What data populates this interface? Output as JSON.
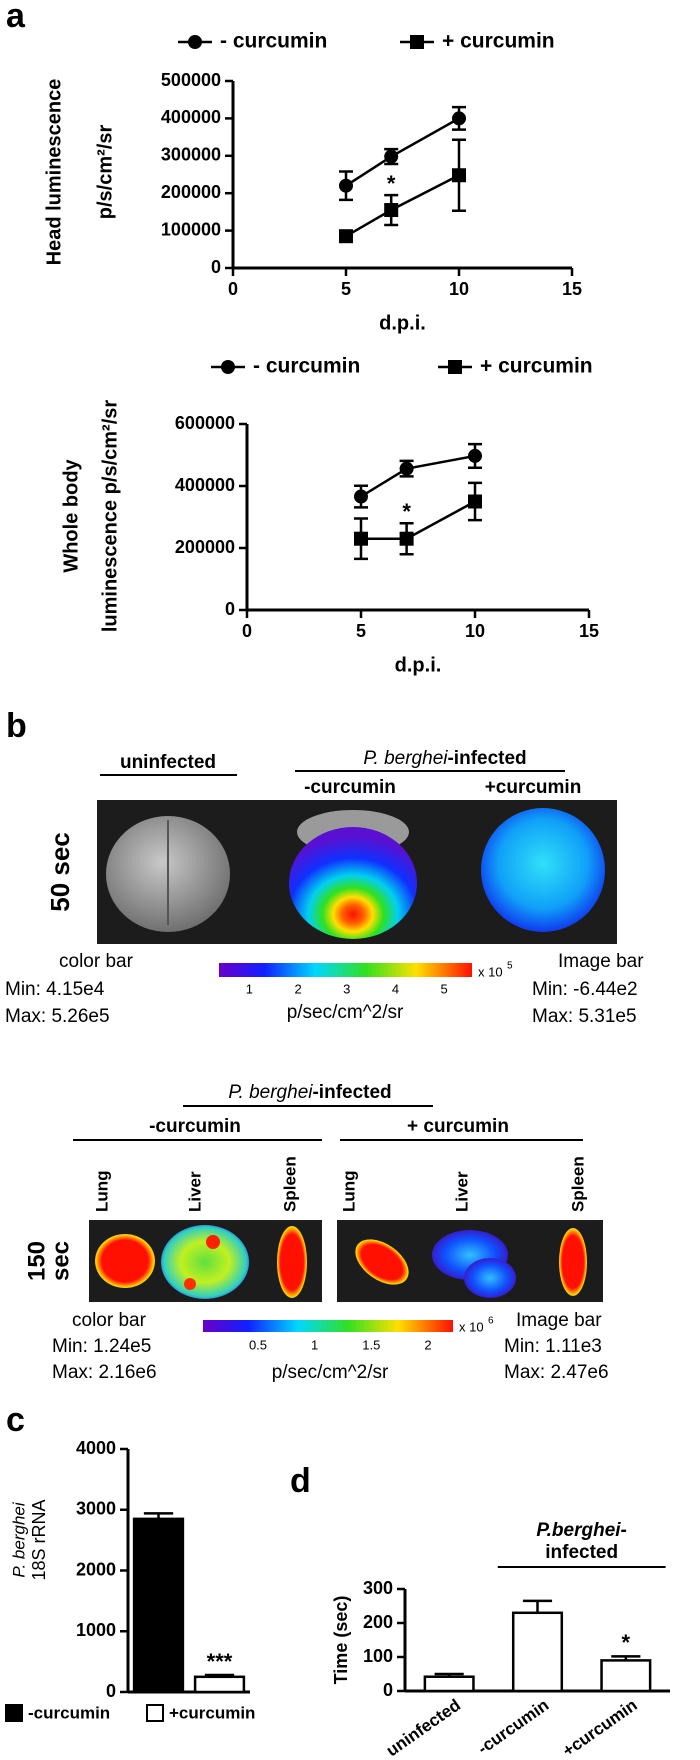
{
  "panel_labels": [
    "a",
    "b",
    "c",
    "d"
  ],
  "chart_data": [
    {
      "type": "line",
      "ylabel": [
        "Head luminescence",
        "p/s/cm²/sr"
      ],
      "xlabel": "d.p.i.",
      "x": [
        5,
        7,
        10
      ],
      "series": [
        {
          "name": "- curcumin",
          "color": "#000000",
          "marker": "circle",
          "values": [
            220000,
            298000,
            400000
          ],
          "errors": [
            38000,
            20000,
            30000
          ]
        },
        {
          "name": "+ curcumin",
          "color": "#000000",
          "marker": "square",
          "values": [
            85000,
            155000,
            248000
          ],
          "errors": [
            8000,
            40000,
            95000
          ]
        }
      ],
      "xlim": [
        0,
        15
      ],
      "xticks": [
        0,
        5,
        10,
        15
      ],
      "ylim": [
        0,
        500000
      ],
      "yticks": [
        0,
        100000,
        200000,
        300000,
        400000,
        500000
      ],
      "annotations": [
        {
          "text": "*",
          "x": 7
        }
      ]
    },
    {
      "type": "line",
      "ylabel": [
        "Whole body",
        "luminescence p/s/cm²/sr"
      ],
      "xlabel": "d.p.i.",
      "x": [
        5,
        7,
        10
      ],
      "series": [
        {
          "name": "- curcumin",
          "color": "#000000",
          "marker": "circle",
          "values": [
            366000,
            456000,
            497000
          ],
          "errors": [
            35000,
            25000,
            38000
          ]
        },
        {
          "name": "+ curcumin",
          "color": "#000000",
          "marker": "square",
          "values": [
            230000,
            230000,
            350000
          ],
          "errors": [
            65000,
            50000,
            60000
          ]
        }
      ],
      "xlim": [
        0,
        15
      ],
      "xticks": [
        0,
        5,
        10,
        15
      ],
      "ylim": [
        0,
        600000
      ],
      "yticks": [
        0,
        200000,
        400000,
        600000
      ],
      "annotations": [
        {
          "text": "*",
          "x": 7
        }
      ]
    },
    {
      "type": "bar",
      "ylabel": [
        "P. berghei",
        "18S rRNA"
      ],
      "categories": [
        "-curcumin",
        "+curcumin"
      ],
      "colors": [
        "#000000",
        "#ffffff"
      ],
      "values": [
        2850,
        250
      ],
      "errors": [
        90,
        30
      ],
      "ylim": [
        0,
        4000
      ],
      "yticks": [
        0,
        1000,
        2000,
        3000,
        4000
      ],
      "annotations": [
        {
          "text": "***",
          "category": "+curcumin"
        }
      ]
    },
    {
      "type": "bar",
      "ylabel": "Time (sec)",
      "categories": [
        "uninfected",
        "-curcumin",
        "+curcumin"
      ],
      "colors": [
        "#ffffff",
        "#ffffff",
        "#ffffff"
      ],
      "values": [
        42,
        230,
        90
      ],
      "errors": [
        8,
        35,
        12
      ],
      "ylim": [
        0,
        300
      ],
      "yticks": [
        0,
        100,
        200,
        300
      ],
      "group_label": {
        "lines": [
          "P.berghei-",
          "infected"
        ],
        "categories": [
          "-curcumin",
          "+curcumin"
        ]
      },
      "annotations": [
        {
          "text": "*",
          "category": "+curcumin"
        }
      ]
    }
  ],
  "panel_b": {
    "top": {
      "uninfected": "uninfected",
      "species": "P. berghei",
      "infected": "-infected",
      "minus": "-curcumin",
      "plus": "+curcumin",
      "exposure": "50 sec",
      "color_bar": {
        "title": "color bar",
        "min": "Min: 4.15e4",
        "max": "Max: 5.26e5",
        "ticks": [
          "1",
          "2",
          "3",
          "4",
          "5"
        ],
        "multiplier": "x 10",
        "exponent": "5",
        "unit": "p/sec/cm^2/sr"
      },
      "image_bar": {
        "title": "Image bar",
        "min": "Min: -6.44e2",
        "max": "Max: 5.31e5"
      }
    },
    "bottom": {
      "species": "P. berghei",
      "infected": "-infected",
      "minus": "-curcumin",
      "plus": "+ curcumin",
      "minus_organs": [
        "Lung",
        "Liver",
        "Spleen"
      ],
      "plus_organs": [
        "Lung",
        "Liver",
        "Spleen"
      ],
      "exposure": [
        "150",
        "sec"
      ],
      "color_bar": {
        "title": "color bar",
        "min": "Min: 1.24e5",
        "max": "Max: 2.16e6",
        "ticks": [
          "0.5",
          "1",
          "1.5",
          "2"
        ],
        "multiplier": "x 10",
        "exponent": "6",
        "unit": "p/sec/cm^2/sr"
      },
      "image_bar": {
        "title": "Image bar",
        "min": "Min: 1.11e3",
        "max": "Max: 2.47e6"
      }
    }
  }
}
